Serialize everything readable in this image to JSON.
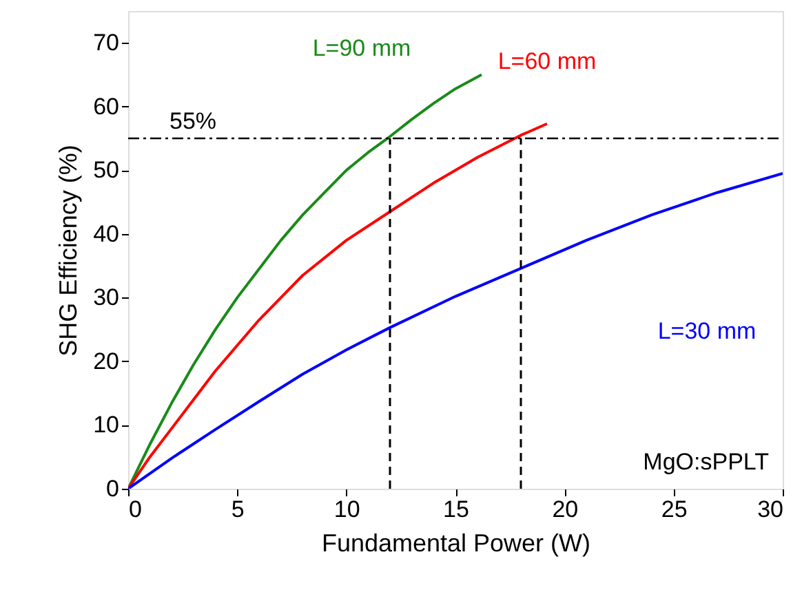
{
  "chart_data": {
    "type": "line",
    "xlabel": "Fundamental Power (W)",
    "ylabel": "SHG Efficiency (%)",
    "xlim": [
      0,
      30
    ],
    "xticks": [
      0,
      5,
      10,
      15,
      20,
      25,
      30
    ],
    "ylim": [
      0,
      75
    ],
    "yticks": [
      0,
      10,
      20,
      30,
      40,
      50,
      60,
      70
    ],
    "grid": false,
    "line_style": "solid",
    "series": [
      {
        "name": "L=90 mm",
        "color": "#1a8a1a",
        "x": [
          0,
          1,
          2,
          3,
          4,
          5,
          6,
          7,
          8,
          9,
          10,
          11,
          12,
          13,
          14,
          15,
          16.2
        ],
        "values": [
          0,
          7,
          13.5,
          19.5,
          25,
          30,
          34.5,
          39,
          43,
          46.5,
          50,
          52.8,
          55.3,
          58,
          60.5,
          62.8,
          65
        ]
      },
      {
        "name": "L=60 mm",
        "color": "#ff0000",
        "x": [
          0,
          1,
          2,
          3,
          4,
          5,
          6,
          8,
          10,
          12,
          14,
          16,
          18,
          19.2
        ],
        "values": [
          0,
          5,
          9.5,
          14,
          18.5,
          22.5,
          26.5,
          33.5,
          39,
          43.5,
          48,
          52,
          55.5,
          57.3
        ]
      },
      {
        "name": "L=30 mm",
        "color": "#0000ff",
        "x": [
          0,
          2,
          4,
          6,
          8,
          10,
          12,
          15,
          18,
          21,
          24,
          27,
          30
        ],
        "values": [
          0,
          4.8,
          9.3,
          13.7,
          18,
          21.8,
          25.3,
          30.2,
          34.6,
          39,
          43,
          46.5,
          49.5
        ]
      },
      {
        "color": "#000000",
        "line_style": "dashed",
        "x": [
          12,
          12
        ],
        "values": [
          0,
          55
        ]
      },
      {
        "color": "#000000",
        "line_style": "dashed",
        "x": [
          18,
          18
        ],
        "values": [
          0,
          55
        ]
      }
    ],
    "ref_lines": [
      {
        "axis": "y",
        "value": 55,
        "label": "55%",
        "color": "#000000",
        "line_style": "dashdot"
      }
    ],
    "annotations": [
      "MgO:sPPLT"
    ]
  }
}
